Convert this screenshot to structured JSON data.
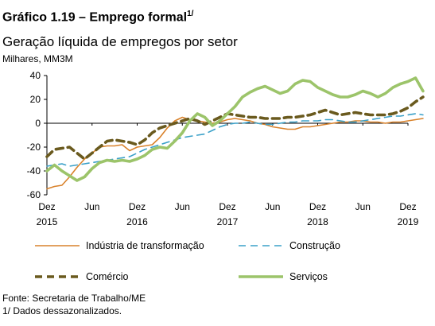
{
  "header": {
    "title": "Gráfico 1.19 – Emprego formal",
    "title_sup": "1/",
    "subtitle": "Geração líquida de empregos por setor",
    "units": "Milhares, MM3M"
  },
  "footer": {
    "source": "Fonte: Secretaria de Trabalho/ME",
    "note": "1/ Dados dessazonalizados."
  },
  "chart_data": {
    "type": "line",
    "title": "",
    "xlabel": "",
    "ylabel": "",
    "ylim": [
      -60,
      40
    ],
    "yticks": [
      -60,
      -40,
      -20,
      0,
      20,
      40
    ],
    "x_range": [
      "Dez 2015",
      "Dez 2019"
    ],
    "xticks": [
      {
        "month": 0,
        "top": "Dez",
        "bottom": "2015"
      },
      {
        "month": 6,
        "top": "Jun",
        "bottom": ""
      },
      {
        "month": 12,
        "top": "Dez",
        "bottom": "2016"
      },
      {
        "month": 18,
        "top": "Jun",
        "bottom": ""
      },
      {
        "month": 24,
        "top": "Dez",
        "bottom": "2017"
      },
      {
        "month": 30,
        "top": "Jun",
        "bottom": ""
      },
      {
        "month": 36,
        "top": "Dez",
        "bottom": "2018"
      },
      {
        "month": 42,
        "top": "Jun",
        "bottom": ""
      },
      {
        "month": 48,
        "top": "Dez",
        "bottom": "2019"
      }
    ],
    "grid": false,
    "legend_position": "bottom",
    "series": [
      {
        "name": "Indústria de transformação",
        "color": "#d9822b",
        "dash": "solid",
        "values": [
          -55,
          -53,
          -52,
          -45,
          -37,
          -30,
          -25,
          -20,
          -19,
          -19,
          -18,
          -23,
          -20,
          -19,
          -18,
          -12,
          -4,
          2,
          5,
          3,
          2,
          1,
          0,
          1,
          3,
          4,
          3,
          2,
          0,
          -1,
          -3,
          -4,
          -5,
          -5,
          -3,
          -3,
          -2,
          -1,
          0,
          1,
          1,
          2,
          2,
          1,
          1,
          0,
          1,
          1,
          2,
          3,
          4
        ]
      },
      {
        "name": "Construção",
        "color": "#3aa0c8",
        "dash": "dashed",
        "values": [
          -36,
          -35,
          -34,
          -36,
          -35,
          -34,
          -33,
          -32,
          -31,
          -30,
          -29,
          -28,
          -25,
          -22,
          -20,
          -18,
          -16,
          -14,
          -12,
          -11,
          -10,
          -9,
          -6,
          -3,
          -1,
          0,
          0,
          1,
          0,
          -1,
          -1,
          0,
          1,
          1,
          2,
          2,
          2,
          3,
          3,
          2,
          1,
          1,
          2,
          3,
          4,
          5,
          6,
          6,
          7,
          8,
          7
        ]
      },
      {
        "name": "Comércio",
        "color": "#6a5a1e",
        "dash": "dashed",
        "values": [
          -28,
          -22,
          -21,
          -20,
          -25,
          -30,
          -25,
          -20,
          -15,
          -14,
          -15,
          -16,
          -18,
          -14,
          -8,
          -4,
          -2,
          0,
          2,
          4,
          2,
          -1,
          2,
          5,
          8,
          7,
          6,
          5,
          5,
          4,
          4,
          4,
          5,
          5,
          6,
          7,
          9,
          11,
          9,
          7,
          8,
          9,
          8,
          7,
          7,
          7,
          8,
          10,
          13,
          18,
          22
        ]
      },
      {
        "name": "Serviços",
        "color": "#9cc46a",
        "dash": "solid",
        "values": [
          -40,
          -35,
          -40,
          -44,
          -48,
          -45,
          -38,
          -33,
          -31,
          -32,
          -31,
          -32,
          -30,
          -27,
          -22,
          -20,
          -21,
          -15,
          -8,
          2,
          8,
          5,
          -2,
          2,
          8,
          14,
          22,
          26,
          29,
          31,
          28,
          25,
          27,
          33,
          36,
          35,
          30,
          27,
          24,
          22,
          22,
          24,
          27,
          25,
          22,
          25,
          30,
          33,
          35,
          38,
          27
        ]
      }
    ]
  }
}
